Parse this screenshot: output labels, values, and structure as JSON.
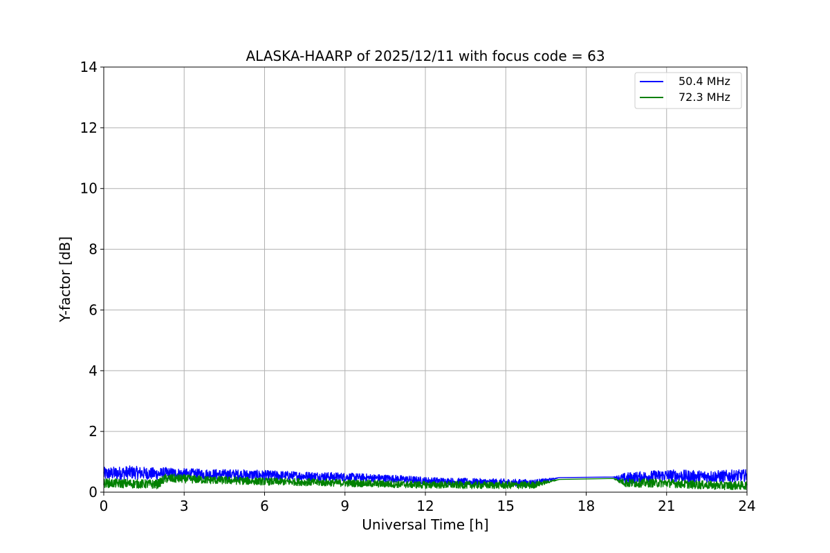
{
  "chart_data": {
    "type": "line",
    "title": "ALASKA-HAARP of 2025/12/11 with focus code = 63",
    "xlabel": "Universal Time [h]",
    "ylabel": "Y-factor [dB]",
    "xlim": [
      0,
      24
    ],
    "ylim": [
      0,
      14
    ],
    "xticks": [
      0,
      3,
      6,
      9,
      12,
      15,
      18,
      21,
      24
    ],
    "yticks": [
      0,
      2,
      4,
      6,
      8,
      10,
      12,
      14
    ],
    "grid": true,
    "legend_position": "top-right",
    "series": [
      {
        "name": "50.4 MHz",
        "color": "#0000ff",
        "x": [
          0,
          1,
          2,
          2.3,
          3,
          4,
          5,
          6,
          7,
          8,
          9,
          10,
          11,
          12,
          13,
          14,
          15,
          16,
          17,
          19,
          19.5,
          20,
          21,
          22,
          23,
          24
        ],
        "y": [
          0.6,
          0.65,
          0.6,
          0.62,
          0.6,
          0.58,
          0.58,
          0.56,
          0.54,
          0.52,
          0.5,
          0.47,
          0.44,
          0.38,
          0.35,
          0.33,
          0.32,
          0.3,
          0.48,
          0.5,
          0.45,
          0.5,
          0.55,
          0.52,
          0.52,
          0.55
        ],
        "band": [
          0.22,
          0.22,
          0.2,
          0.2,
          0.18,
          0.18,
          0.17,
          0.16,
          0.15,
          0.15,
          0.14,
          0.13,
          0.12,
          0.12,
          0.12,
          0.12,
          0.12,
          0.12,
          0,
          0,
          0.2,
          0.18,
          0.2,
          0.2,
          0.2,
          0.2
        ]
      },
      {
        "name": "72.3 MHz",
        "color": "#008000",
        "x": [
          0,
          1,
          2,
          2.3,
          3,
          4,
          5,
          6,
          7,
          8,
          9,
          10,
          11,
          12,
          13,
          14,
          15,
          16,
          17,
          19,
          19.5,
          20,
          21,
          22,
          23,
          24
        ],
        "y": [
          0.3,
          0.28,
          0.26,
          0.45,
          0.44,
          0.4,
          0.38,
          0.35,
          0.34,
          0.32,
          0.3,
          0.28,
          0.26,
          0.24,
          0.24,
          0.23,
          0.23,
          0.23,
          0.42,
          0.45,
          0.3,
          0.3,
          0.3,
          0.25,
          0.22,
          0.22
        ],
        "band": [
          0.15,
          0.15,
          0.15,
          0.15,
          0.14,
          0.13,
          0.13,
          0.12,
          0.12,
          0.12,
          0.12,
          0.12,
          0.12,
          0.12,
          0.12,
          0.12,
          0.12,
          0.12,
          0,
          0,
          0.15,
          0.14,
          0.14,
          0.14,
          0.14,
          0.14
        ]
      }
    ]
  }
}
